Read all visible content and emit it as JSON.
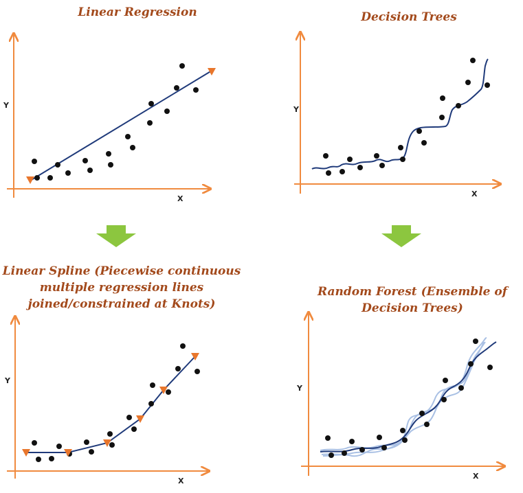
{
  "colors": {
    "title": "#a34a1c",
    "axis": "#f08a3e",
    "fit_line": "#1f3a7a",
    "knot": "#e8762c",
    "ensemble_line": "#a9c0e4",
    "point": "#111111",
    "arrow": "#8cc63f"
  },
  "panels": [
    {
      "id": "linear-regression",
      "title_lines": [
        "Linear Regression"
      ],
      "x_label": "X",
      "y_label": "Y"
    },
    {
      "id": "decision-trees",
      "title_lines": [
        "Decision Trees"
      ],
      "x_label": "X",
      "y_label": "Y"
    },
    {
      "id": "linear-spline",
      "title_lines": [
        "Linear Spline (Piecewise continuous",
        "multiple regression lines",
        "joined/constrained at Knots)"
      ],
      "x_label": "X",
      "y_label": "Y"
    },
    {
      "id": "random-forest",
      "title_lines": [
        "Random Forest (Ensemble of",
        "Decision Trees)"
      ],
      "x_label": "X",
      "y_label": "Y"
    }
  ]
}
